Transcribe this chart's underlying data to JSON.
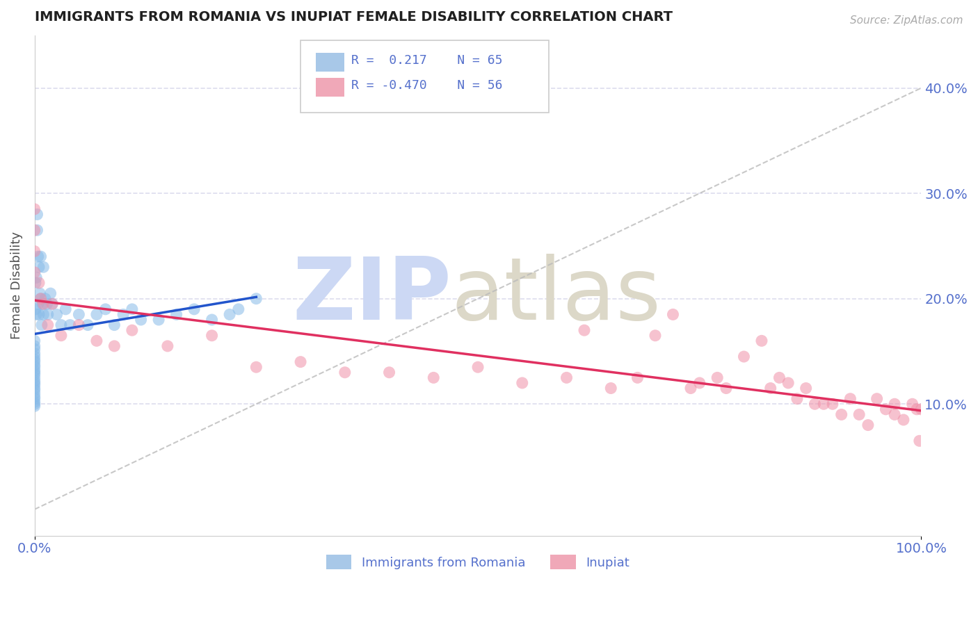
{
  "title": "IMMIGRANTS FROM ROMANIA VS INUPIAT FEMALE DISABILITY CORRELATION CHART",
  "source_text": "Source: ZipAtlas.com",
  "ylabel": "Female Disability",
  "right_ytick_labels": [
    "10.0%",
    "20.0%",
    "30.0%",
    "40.0%"
  ],
  "right_ytick_values": [
    0.1,
    0.2,
    0.3,
    0.4
  ],
  "xlim": [
    0.0,
    1.0
  ],
  "ylim": [
    -0.025,
    0.45
  ],
  "xticklabels": [
    "0.0%",
    "100.0%"
  ],
  "xtick_values": [
    0.0,
    1.0
  ],
  "blue_color": "#88bbe8",
  "pink_color": "#f090a8",
  "blue_line_color": "#2255cc",
  "pink_line_color": "#e03060",
  "title_color": "#202020",
  "axis_color": "#5570cc",
  "grid_color": "#ddddee",
  "background_color": "#ffffff",
  "legend_blue_label1": "R =  0.217",
  "legend_blue_label2": "N = 65",
  "legend_pink_label1": "R = -0.470",
  "legend_pink_label2": "N = 56",
  "legend_blue_color": "#a8c8e8",
  "legend_pink_color": "#f0a8b8",
  "watermark_zip_color": "#ccd8f4",
  "watermark_atlas_color": "#dcd8c8",
  "blue_scatter_x": [
    0.0,
    0.0,
    0.0,
    0.0,
    0.0,
    0.0,
    0.0,
    0.0,
    0.0,
    0.0,
    0.0,
    0.0,
    0.0,
    0.0,
    0.0,
    0.0,
    0.0,
    0.0,
    0.0,
    0.0,
    0.0,
    0.0,
    0.0,
    0.0,
    0.001,
    0.001,
    0.002,
    0.002,
    0.003,
    0.003,
    0.004,
    0.004,
    0.005,
    0.005,
    0.006,
    0.007,
    0.007,
    0.008,
    0.009,
    0.01,
    0.01,
    0.012,
    0.014,
    0.015,
    0.018,
    0.02,
    0.025,
    0.03,
    0.035,
    0.04,
    0.05,
    0.06,
    0.07,
    0.08,
    0.09,
    0.1,
    0.11,
    0.12,
    0.14,
    0.16,
    0.18,
    0.2,
    0.22,
    0.23,
    0.25
  ],
  "blue_scatter_y": [
    0.16,
    0.155,
    0.152,
    0.148,
    0.145,
    0.142,
    0.14,
    0.137,
    0.135,
    0.132,
    0.13,
    0.128,
    0.125,
    0.122,
    0.12,
    0.118,
    0.115,
    0.113,
    0.11,
    0.107,
    0.105,
    0.102,
    0.1,
    0.098,
    0.215,
    0.19,
    0.22,
    0.185,
    0.28,
    0.265,
    0.24,
    0.195,
    0.23,
    0.185,
    0.205,
    0.24,
    0.2,
    0.175,
    0.195,
    0.23,
    0.185,
    0.2,
    0.195,
    0.185,
    0.205,
    0.195,
    0.185,
    0.175,
    0.19,
    0.175,
    0.185,
    0.175,
    0.185,
    0.19,
    0.175,
    0.185,
    0.19,
    0.18,
    0.18,
    0.185,
    0.19,
    0.18,
    0.185,
    0.19,
    0.2
  ],
  "pink_scatter_x": [
    0.0,
    0.0,
    0.0,
    0.0,
    0.005,
    0.007,
    0.01,
    0.015,
    0.02,
    0.03,
    0.05,
    0.07,
    0.09,
    0.11,
    0.15,
    0.2,
    0.25,
    0.3,
    0.35,
    0.4,
    0.45,
    0.5,
    0.55,
    0.6,
    0.62,
    0.65,
    0.68,
    0.7,
    0.72,
    0.74,
    0.75,
    0.77,
    0.78,
    0.8,
    0.82,
    0.83,
    0.84,
    0.85,
    0.86,
    0.87,
    0.88,
    0.89,
    0.9,
    0.91,
    0.92,
    0.93,
    0.94,
    0.95,
    0.96,
    0.97,
    0.97,
    0.98,
    0.99,
    0.995,
    0.998,
    1.0
  ],
  "pink_scatter_y": [
    0.285,
    0.265,
    0.245,
    0.225,
    0.215,
    0.2,
    0.195,
    0.175,
    0.195,
    0.165,
    0.175,
    0.16,
    0.155,
    0.17,
    0.155,
    0.165,
    0.135,
    0.14,
    0.13,
    0.13,
    0.125,
    0.135,
    0.12,
    0.125,
    0.17,
    0.115,
    0.125,
    0.165,
    0.185,
    0.115,
    0.12,
    0.125,
    0.115,
    0.145,
    0.16,
    0.115,
    0.125,
    0.12,
    0.105,
    0.115,
    0.1,
    0.1,
    0.1,
    0.09,
    0.105,
    0.09,
    0.08,
    0.105,
    0.095,
    0.1,
    0.09,
    0.085,
    0.1,
    0.095,
    0.065,
    0.095
  ]
}
